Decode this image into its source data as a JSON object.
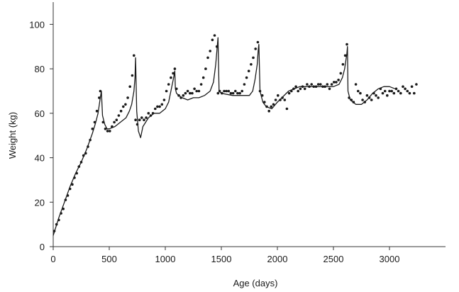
{
  "chart_data": {
    "type": "scatter",
    "xlabel": "Age (days)",
    "ylabel": "Weight (kg)",
    "xlim": [
      0,
      3500
    ],
    "ylim": [
      0,
      110
    ],
    "x_ticks": [
      0,
      500,
      1000,
      1500,
      2000,
      2500,
      3000
    ],
    "y_ticks": [
      0,
      20,
      40,
      60,
      80,
      100
    ],
    "grid": false,
    "legend": "none",
    "series": [
      {
        "kind": "line",
        "x": [
          0,
          50,
          100,
          150,
          200,
          250,
          300,
          350,
          380,
          400,
          420,
          430,
          440,
          460,
          480,
          500,
          550,
          600,
          650,
          680,
          700,
          720,
          730,
          735,
          745,
          760,
          780,
          800,
          850,
          900,
          950,
          1000,
          1030,
          1050,
          1070,
          1085,
          1090,
          1100,
          1120,
          1150,
          1200,
          1250,
          1300,
          1350,
          1400,
          1430,
          1450,
          1465,
          1470,
          1480,
          1500,
          1600,
          1700,
          1750,
          1780,
          1800,
          1820,
          1830,
          1835,
          1845,
          1870,
          1900,
          1950,
          2000,
          2100,
          2200,
          2300,
          2400,
          2500,
          2550,
          2580,
          2600,
          2620,
          2625,
          2630,
          2650,
          2700,
          2750,
          2800,
          2850,
          2900,
          2950,
          3000,
          3050
        ],
        "y": [
          5,
          13,
          20,
          27,
          33,
          38,
          44,
          51,
          56,
          60,
          67,
          70,
          59,
          55,
          53,
          53,
          54,
          56,
          58,
          61,
          64,
          70,
          76,
          85,
          61,
          52,
          49,
          54,
          58,
          60,
          60,
          62,
          65,
          70,
          75,
          79,
          71,
          69,
          68,
          67,
          66,
          67,
          67,
          68,
          70,
          74,
          82,
          91,
          94,
          70,
          69,
          68,
          68,
          68,
          70,
          75,
          82,
          89,
          91,
          70,
          65,
          63,
          62,
          65,
          70,
          72,
          72,
          72,
          72,
          73,
          76,
          80,
          87,
          90,
          70,
          66,
          64,
          64,
          66,
          69,
          71,
          72,
          72,
          71
        ],
        "color": "#1a1a1a"
      },
      {
        "kind": "scatter",
        "x": [
          10,
          30,
          50,
          70,
          90,
          110,
          130,
          150,
          170,
          190,
          210,
          230,
          250,
          270,
          290,
          310,
          330,
          350,
          370,
          390,
          410,
          420,
          445,
          465,
          485,
          505,
          525,
          545,
          565,
          585,
          605,
          625,
          645,
          665,
          685,
          705,
          720,
          735,
          750,
          770,
          790,
          810,
          830,
          850,
          870,
          890,
          910,
          930,
          950,
          970,
          990,
          1010,
          1030,
          1050,
          1070,
          1085,
          1100,
          1120,
          1140,
          1160,
          1180,
          1200,
          1220,
          1240,
          1260,
          1280,
          1300,
          1320,
          1340,
          1360,
          1380,
          1400,
          1420,
          1440,
          1460,
          1470,
          1485,
          1505,
          1525,
          1545,
          1565,
          1585,
          1605,
          1625,
          1645,
          1665,
          1685,
          1705,
          1725,
          1745,
          1765,
          1785,
          1805,
          1825,
          1845,
          1865,
          1885,
          1905,
          1925,
          1945,
          1965,
          1985,
          2005,
          2025,
          2045,
          2065,
          2085,
          2105,
          2125,
          2145,
          2165,
          2185,
          2205,
          2225,
          2245,
          2265,
          2285,
          2305,
          2325,
          2345,
          2365,
          2385,
          2405,
          2425,
          2445,
          2465,
          2485,
          2505,
          2525,
          2545,
          2565,
          2585,
          2605,
          2620,
          2640,
          2660,
          2680,
          2700,
          2720,
          2740,
          2760,
          2780,
          2800,
          2820,
          2840,
          2860,
          2880,
          2900,
          2920,
          2940,
          2960,
          2980,
          3000,
          3020,
          3040,
          3060,
          3080,
          3100,
          3120,
          3140,
          3160,
          3180,
          3200,
          3220,
          3240
        ],
        "y": [
          7,
          10,
          12,
          15,
          17,
          21,
          23,
          26,
          28,
          31,
          33,
          36,
          38,
          41,
          42,
          45,
          48,
          53,
          56,
          61,
          67,
          70,
          56,
          53,
          52,
          52,
          54,
          56,
          57,
          59,
          61,
          63,
          64,
          67,
          72,
          77,
          86,
          57,
          55,
          57,
          58,
          57,
          58,
          60,
          59,
          60,
          62,
          63,
          63,
          64,
          66,
          70,
          73,
          76,
          78,
          80,
          71,
          68,
          67,
          68,
          69,
          70,
          69,
          69,
          71,
          70,
          70,
          73,
          76,
          80,
          85,
          88,
          93,
          95,
          90,
          69,
          70,
          69,
          70,
          70,
          70,
          69,
          69,
          70,
          69,
          69,
          70,
          73,
          76,
          79,
          82,
          85,
          89,
          92,
          70,
          68,
          65,
          63,
          61,
          63,
          64,
          66,
          68,
          66,
          67,
          66,
          62,
          69,
          70,
          71,
          72,
          70,
          71,
          72,
          71,
          73,
          72,
          73,
          72,
          72,
          73,
          73,
          72,
          72,
          73,
          71,
          73,
          74,
          74,
          75,
          78,
          82,
          86,
          91,
          67,
          66,
          65,
          73,
          70,
          69,
          66,
          65,
          68,
          67,
          66,
          69,
          68,
          67,
          71,
          69,
          70,
          68,
          70,
          70,
          69,
          71,
          70,
          69,
          72,
          71,
          70,
          69,
          72,
          69,
          73
        ],
        "color": "#1a1a1a"
      }
    ]
  }
}
